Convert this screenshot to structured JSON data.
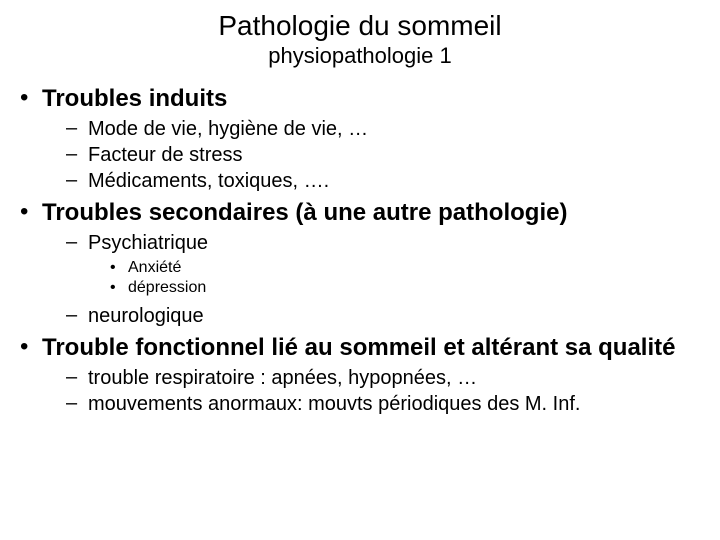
{
  "colors": {
    "background": "#ffffff",
    "text": "#000000"
  },
  "fonts": {
    "family": "Comic Sans MS",
    "title_size_pt": 28,
    "subtitle_size_pt": 22,
    "lvl1_size_pt": 24,
    "lvl2_size_pt": 20,
    "lvl3_size_pt": 16
  },
  "bullets": {
    "lvl1": "•",
    "lvl2": "–",
    "lvl3": "•"
  },
  "title": "Pathologie du sommeil",
  "subtitle": "physiopathologie 1",
  "items": [
    {
      "text": "Troubles induits",
      "children": [
        {
          "text": "Mode de vie, hygiène de vie, …"
        },
        {
          "text": "Facteur de stress"
        },
        {
          "text": "Médicaments, toxiques, …."
        }
      ]
    },
    {
      "text": "Troubles secondaires (à une autre pathologie)",
      "children": [
        {
          "text": "Psychiatrique",
          "children": [
            {
              "text": "Anxiété"
            },
            {
              "text": "dépression"
            }
          ]
        },
        {
          "text": "neurologique"
        }
      ]
    },
    {
      "text": "Trouble fonctionnel lié au sommeil et altérant sa qualité",
      "children": [
        {
          "text": "trouble respiratoire :  apnées, hypopnées, …"
        },
        {
          "text": "mouvements anormaux:  mouvts périodiques des M. Inf."
        }
      ]
    }
  ]
}
